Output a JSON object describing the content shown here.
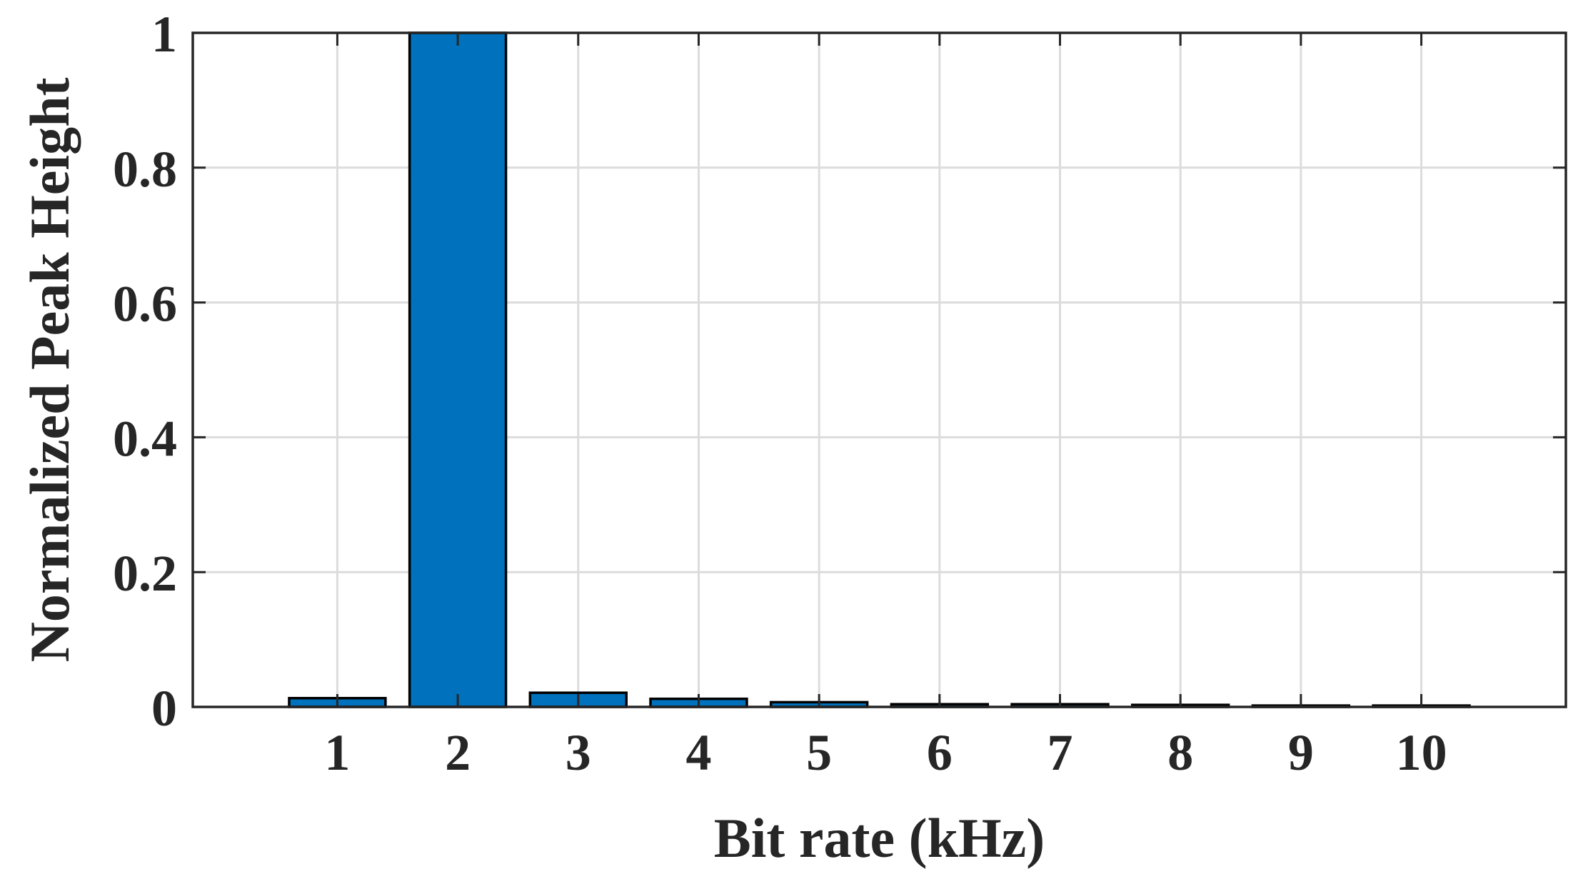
{
  "chart_data": {
    "type": "bar",
    "title": "",
    "xlabel": "Bit rate (kHz)",
    "ylabel": "Normalized Peak Height",
    "categories": [
      "1",
      "2",
      "3",
      "4",
      "5",
      "6",
      "7",
      "8",
      "9",
      "10"
    ],
    "values": [
      0.013,
      1.0,
      0.021,
      0.012,
      0.007,
      0.004,
      0.004,
      0.003,
      0.002,
      0.002
    ],
    "xlim": [
      -0.2,
      11.2
    ],
    "ylim": [
      0,
      1
    ],
    "yticks": [
      "0",
      "0.2",
      "0.4",
      "0.6",
      "0.8",
      "1"
    ],
    "grid": true,
    "legend": "none",
    "colors": {
      "bar_fill": "#0072BD",
      "bar_edge": "#000000",
      "grid": "#dcdcdc",
      "axes": "#262626",
      "text": "#262626"
    }
  }
}
